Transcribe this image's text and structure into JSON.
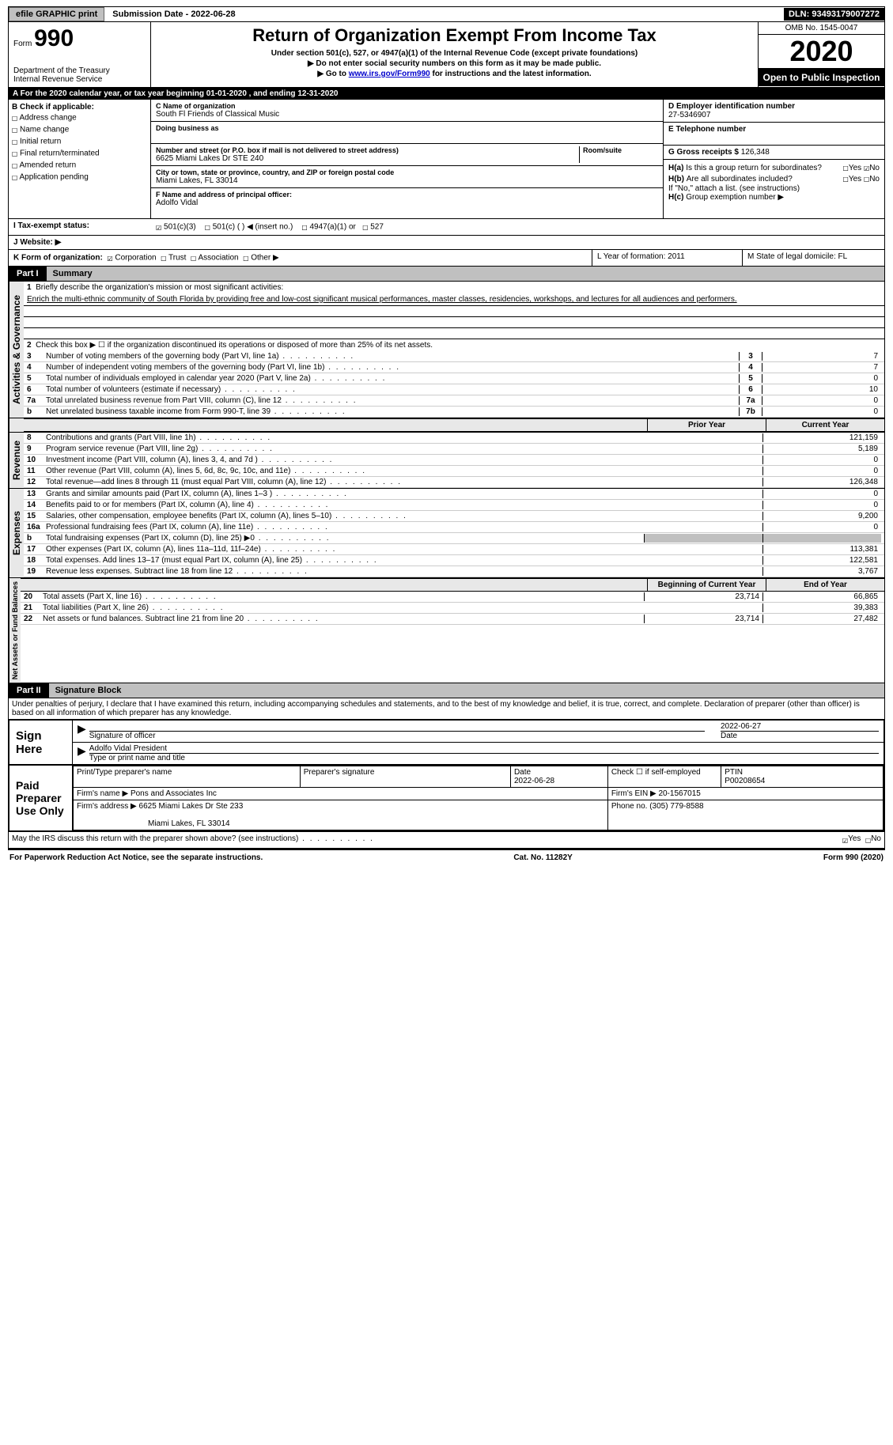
{
  "topbar": {
    "efile": "efile GRAPHIC print",
    "submission": "Submission Date - 2022-06-28",
    "dln": "DLN: 93493179007272"
  },
  "header": {
    "form_word": "Form",
    "form_num": "990",
    "dept1": "Department of the Treasury",
    "dept2": "Internal Revenue Service",
    "title": "Return of Organization Exempt From Income Tax",
    "sub1": "Under section 501(c), 527, or 4947(a)(1) of the Internal Revenue Code (except private foundations)",
    "sub2": "▶ Do not enter social security numbers on this form as it may be made public.",
    "sub3a": "▶ Go to ",
    "sub3_link": "www.irs.gov/Form990",
    "sub3b": " for instructions and the latest information.",
    "omb": "OMB No. 1545-0047",
    "year": "2020",
    "inspect": "Open to Public Inspection"
  },
  "row_a": "A For the 2020 calendar year, or tax year beginning 01-01-2020    , and ending 12-31-2020",
  "col_b": {
    "hdr": "B Check if applicable:",
    "items": [
      "Address change",
      "Name change",
      "Initial return",
      "Final return/terminated",
      "Amended return",
      "Application pending"
    ]
  },
  "org": {
    "c_lbl": "C Name of organization",
    "c_val": "South Fl Friends of Classical Music",
    "dba_lbl": "Doing business as",
    "addr_lbl": "Number and street (or P.O. box if mail is not delivered to street address)",
    "room_lbl": "Room/suite",
    "addr_val": "6625 Miami Lakes Dr STE 240",
    "city_lbl": "City or town, state or province, country, and ZIP or foreign postal code",
    "city_val": "Miami Lakes, FL  33014",
    "f_lbl": "F Name and address of principal officer:",
    "f_val": "Adolfo Vidal"
  },
  "right": {
    "d_lbl": "D Employer identification number",
    "d_val": "27-5346907",
    "e_lbl": "E Telephone number",
    "g_lbl": "G Gross receipts $",
    "g_val": "126,348",
    "ha_lbl": "H(a)",
    "ha_txt": "Is this a group return for subordinates?",
    "hb_lbl": "H(b)",
    "hb_txt": "Are all subordinates included?",
    "h_note": "If \"No,\" attach a list. (see instructions)",
    "hc_lbl": "H(c)",
    "hc_txt": "Group exemption number ▶",
    "yes": "Yes",
    "no": "No"
  },
  "row_i": {
    "lbl": "I    Tax-exempt status:",
    "o1": "501(c)(3)",
    "o2": "501(c) (  ) ◀ (insert no.)",
    "o3": "4947(a)(1) or",
    "o4": "527"
  },
  "row_j": {
    "lbl": "J    Website: ▶"
  },
  "row_k": {
    "lbl": "K Form of organization:",
    "o1": "Corporation",
    "o2": "Trust",
    "o3": "Association",
    "o4": "Other ▶",
    "l": "L Year of formation: 2011",
    "m": "M State of legal domicile: FL"
  },
  "part1": {
    "tag": "Part I",
    "title": "Summary"
  },
  "summary": {
    "l1_lbl": "1",
    "l1_txt": "Briefly describe the organization's mission or most significant activities:",
    "l1_val": "Enrich the multi-ethnic community of South Florida by providing free and low-cost significant musical performances, master classes, residencies, workshops, and lectures for all audiences and performers.",
    "l2_lbl": "2",
    "l2_txt": "Check this box ▶ ☐  if the organization discontinued its operations or disposed of more than 25% of its net assets.",
    "lines": [
      {
        "n": "3",
        "t": "Number of voting members of the governing body (Part VI, line 1a)",
        "box": "3",
        "v": "7"
      },
      {
        "n": "4",
        "t": "Number of independent voting members of the governing body (Part VI, line 1b)",
        "box": "4",
        "v": "7"
      },
      {
        "n": "5",
        "t": "Total number of individuals employed in calendar year 2020 (Part V, line 2a)",
        "box": "5",
        "v": "0"
      },
      {
        "n": "6",
        "t": "Total number of volunteers (estimate if necessary)",
        "box": "6",
        "v": "10"
      },
      {
        "n": "7a",
        "t": "Total unrelated business revenue from Part VIII, column (C), line 12",
        "box": "7a",
        "v": "0"
      },
      {
        "n": "b",
        "t": "Net unrelated business taxable income from Form 990-T, line 39",
        "box": "7b",
        "v": "0"
      }
    ],
    "hdr_prior": "Prior Year",
    "hdr_curr": "Current Year",
    "rev": [
      {
        "n": "8",
        "t": "Contributions and grants (Part VIII, line 1h)",
        "p": "",
        "c": "121,159"
      },
      {
        "n": "9",
        "t": "Program service revenue (Part VIII, line 2g)",
        "p": "",
        "c": "5,189"
      },
      {
        "n": "10",
        "t": "Investment income (Part VIII, column (A), lines 3, 4, and 7d )",
        "p": "",
        "c": "0"
      },
      {
        "n": "11",
        "t": "Other revenue (Part VIII, column (A), lines 5, 6d, 8c, 9c, 10c, and 11e)",
        "p": "",
        "c": "0"
      },
      {
        "n": "12",
        "t": "Total revenue—add lines 8 through 11 (must equal Part VIII, column (A), line 12)",
        "p": "",
        "c": "126,348"
      }
    ],
    "exp": [
      {
        "n": "13",
        "t": "Grants and similar amounts paid (Part IX, column (A), lines 1–3 )",
        "p": "",
        "c": "0"
      },
      {
        "n": "14",
        "t": "Benefits paid to or for members (Part IX, column (A), line 4)",
        "p": "",
        "c": "0"
      },
      {
        "n": "15",
        "t": "Salaries, other compensation, employee benefits (Part IX, column (A), lines 5–10)",
        "p": "",
        "c": "9,200"
      },
      {
        "n": "16a",
        "t": "Professional fundraising fees (Part IX, column (A), line 11e)",
        "p": "",
        "c": "0"
      },
      {
        "n": "b",
        "t": "Total fundraising expenses (Part IX, column (D), line 25) ▶0",
        "p": "gray",
        "c": "gray"
      },
      {
        "n": "17",
        "t": "Other expenses (Part IX, column (A), lines 11a–11d, 11f–24e)",
        "p": "",
        "c": "113,381"
      },
      {
        "n": "18",
        "t": "Total expenses. Add lines 13–17 (must equal Part IX, column (A), line 25)",
        "p": "",
        "c": "122,581"
      },
      {
        "n": "19",
        "t": "Revenue less expenses. Subtract line 18 from line 12",
        "p": "",
        "c": "3,767"
      }
    ],
    "hdr_begin": "Beginning of Current Year",
    "hdr_end": "End of Year",
    "net": [
      {
        "n": "20",
        "t": "Total assets (Part X, line 16)",
        "p": "23,714",
        "c": "66,865"
      },
      {
        "n": "21",
        "t": "Total liabilities (Part X, line 26)",
        "p": "",
        "c": "39,383"
      },
      {
        "n": "22",
        "t": "Net assets or fund balances. Subtract line 21 from line 20",
        "p": "23,714",
        "c": "27,482"
      }
    ],
    "vlabels": {
      "gov": "Activities & Governance",
      "rev": "Revenue",
      "exp": "Expenses",
      "net": "Net Assets or Fund Balances"
    }
  },
  "part2": {
    "tag": "Part II",
    "title": "Signature Block"
  },
  "sig": {
    "decl": "Under penalties of perjury, I declare that I have examined this return, including accompanying schedules and statements, and to the best of my knowledge and belief, it is true, correct, and complete. Declaration of preparer (other than officer) is based on all information of which preparer has any knowledge.",
    "sign_here": "Sign Here",
    "sig_officer": "Signature of officer",
    "date": "Date",
    "date_val": "2022-06-27",
    "name_line": "Adolfo Vidal  President",
    "name_lbl": "Type or print name and title",
    "paid": "Paid Preparer Use Only",
    "prep_name": "Print/Type preparer's name",
    "prep_sig": "Preparer's signature",
    "prep_date": "Date",
    "prep_date_val": "2022-06-28",
    "self_emp": "Check ☐ if self-employed",
    "ptin_lbl": "PTIN",
    "ptin_val": "P00208654",
    "firm_name_lbl": "Firm's name    ▶",
    "firm_name": "Pons and Associates Inc",
    "firm_ein_lbl": "Firm's EIN ▶",
    "firm_ein": "20-1567015",
    "firm_addr_lbl": "Firm's address ▶",
    "firm_addr": "6625 Miami Lakes Dr Ste 233",
    "firm_city": "Miami Lakes, FL  33014",
    "phone_lbl": "Phone no.",
    "phone": "(305) 779-8588",
    "discuss": "May the IRS discuss this return with the preparer shown above? (see instructions)"
  },
  "footer": {
    "left": "For Paperwork Reduction Act Notice, see the separate instructions.",
    "mid": "Cat. No. 11282Y",
    "right": "Form 990 (2020)"
  }
}
